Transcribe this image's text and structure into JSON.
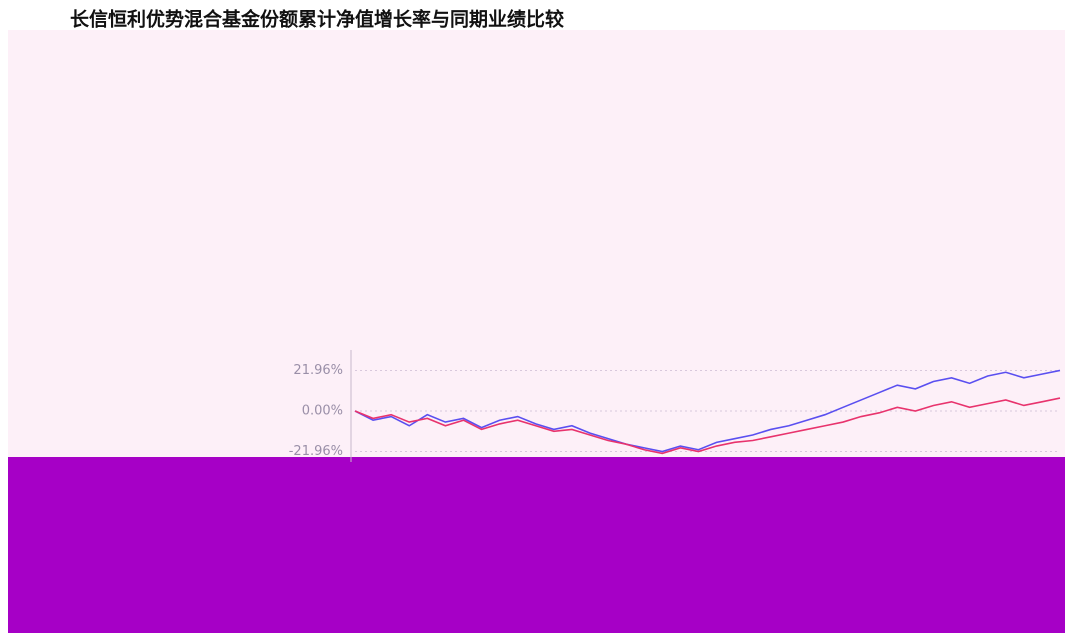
{
  "chart_data": {
    "type": "line",
    "title": "长信恒利优势混合基金份额累计净值增长率与同期业绩比较",
    "series": [
      {
        "color": "#5a4ff0",
        "values": [
          0,
          -5,
          -3,
          -8,
          -2,
          -6,
          -4,
          -9,
          -5,
          -3,
          -7,
          -10,
          -8,
          -12,
          -15,
          -18,
          -20,
          -22,
          -19,
          -21,
          -17,
          -15,
          -13,
          -10,
          -8,
          -5,
          -2,
          2,
          6,
          10,
          14,
          12,
          16,
          18,
          15,
          19,
          21,
          18,
          20,
          22
        ]
      },
      {
        "color": "#e8336d",
        "values": [
          0,
          -4,
          -2,
          -6,
          -4,
          -8,
          -5,
          -10,
          -7,
          -5,
          -8,
          -11,
          -10,
          -13,
          -16,
          -18,
          -21,
          -23,
          -20,
          -22,
          -19,
          -17,
          -16,
          -14,
          -12,
          -10,
          -8,
          -6,
          -3,
          -1,
          2,
          0,
          3,
          5,
          2,
          4,
          6,
          3,
          5,
          7
        ]
      }
    ],
    "ylim": [
      -43.92,
      43.92
    ],
    "yticks": [
      {
        "value": 21.96,
        "label": "21.96%"
      },
      {
        "value": 0,
        "label": "0.00%"
      },
      {
        "value": -21.96,
        "label": "-21.96%"
      }
    ],
    "grid": true
  }
}
